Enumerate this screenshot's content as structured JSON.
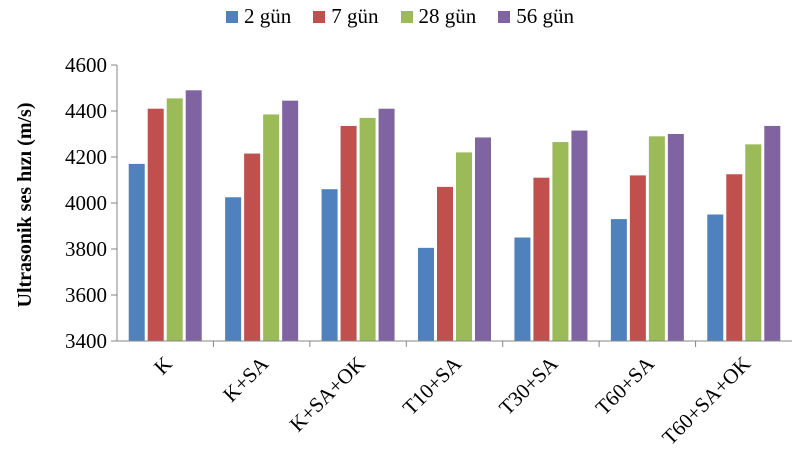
{
  "chart_data": {
    "type": "bar",
    "categories": [
      "K",
      "K+SA",
      "K+SA+OK",
      "T10+SA",
      "T30+SA",
      "T60+SA",
      "T60+SA+OK"
    ],
    "series": [
      {
        "name": "2 gün",
        "color": "#4f81bd",
        "values": [
          4170,
          4025,
          4060,
          3805,
          3850,
          3930,
          3950
        ]
      },
      {
        "name": "7 gün",
        "color": "#c0504d",
        "values": [
          4410,
          4215,
          4335,
          4070,
          4110,
          4120,
          4125
        ]
      },
      {
        "name": "28 gün",
        "color": "#9bbb59",
        "values": [
          4455,
          4385,
          4370,
          4220,
          4265,
          4290,
          4255
        ]
      },
      {
        "name": "56 gün",
        "color": "#8064a2",
        "values": [
          4490,
          4445,
          4410,
          4285,
          4315,
          4300,
          4335
        ]
      }
    ],
    "ylabel": "Ultrasonik ses hızı (m/s)",
    "ylim": [
      3400,
      4600
    ],
    "yticks": [
      3400,
      3600,
      3800,
      4000,
      4200,
      4400,
      4600
    ],
    "grid": false,
    "legend": "top-center"
  }
}
